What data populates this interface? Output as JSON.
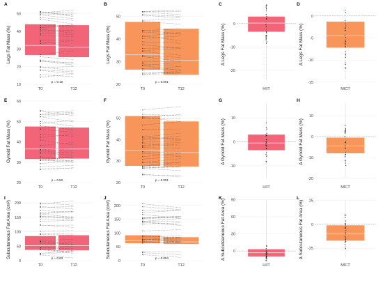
{
  "chart_data": [
    {
      "id": "A",
      "type": "bar",
      "panel_letter": "A",
      "kind": "paired",
      "color": "#f26478",
      "ylabel": "Legs Fat Mass (%)",
      "categories": [
        "T0",
        "T12"
      ],
      "values": [
        44,
        43.5
      ],
      "median": [
        32,
        31
      ],
      "ylim": [
        10,
        55
      ],
      "yticks": [
        10,
        20,
        30,
        40,
        50
      ],
      "p_text": "p = 0.15"
    },
    {
      "id": "B",
      "type": "bar",
      "panel_letter": "B",
      "kind": "paired",
      "color": "#f7955a",
      "ylabel": "Legs Fat Mass (%)",
      "categories": [
        "T0",
        "T12"
      ],
      "values": [
        47.5,
        44.5
      ],
      "median": [
        33,
        30.5
      ],
      "ylim": [
        20,
        55
      ],
      "yticks": [
        20,
        30,
        40,
        50
      ],
      "p_text": "p = 0.001"
    },
    {
      "id": "C",
      "type": "bar",
      "panel_letter": "C",
      "kind": "delta",
      "color": "#f26478",
      "ylabel": "Δ Legs Fat Mass (%)",
      "category": "HIIT",
      "range": [
        -3.5,
        3
      ],
      "median": 0.2,
      "ylim": [
        -26,
        8
      ],
      "yticks": [
        -20,
        -10,
        0
      ]
    },
    {
      "id": "D",
      "type": "bar",
      "panel_letter": "D",
      "kind": "delta",
      "color": "#f7955a",
      "ylabel": "Δ Legs Fat Mass (%)",
      "category": "MICT",
      "range": [
        -7.2,
        -1.3
      ],
      "median": -4.5,
      "ylim": [
        -15.5,
        2.5
      ],
      "yticks": [
        -15,
        -10,
        -5,
        0
      ]
    },
    {
      "id": "E",
      "type": "bar",
      "panel_letter": "E",
      "kind": "paired",
      "color": "#f26478",
      "ylabel": "Gynoid Fat Mass (%)",
      "categories": [
        "T0",
        "T12"
      ],
      "values": [
        47.5,
        47
      ],
      "median": [
        36.5,
        36.5
      ],
      "ylim": [
        20,
        60
      ],
      "yticks": [
        20,
        30,
        40,
        50,
        60
      ],
      "p_text": "p = 0.50"
    },
    {
      "id": "F",
      "type": "bar",
      "panel_letter": "F",
      "kind": "paired",
      "color": "#f7955a",
      "ylabel": "Gynoid Fat Mass (%)",
      "categories": [
        "T0",
        "T12"
      ],
      "values": [
        51,
        48.5
      ],
      "median": [
        35,
        34
      ],
      "ylim": [
        20,
        58
      ],
      "yticks": [
        20,
        30,
        40,
        50
      ],
      "p_text": "p = 0.001"
    },
    {
      "id": "G",
      "type": "bar",
      "panel_letter": "G",
      "kind": "delta",
      "color": "#f26478",
      "ylabel": "Δ Gynoid Fat Mass (%)",
      "category": "HIIT",
      "range": [
        -3.5,
        3
      ],
      "median": -0.5,
      "ylim": [
        -17,
        17
      ],
      "yticks": [
        -10,
        0,
        10
      ]
    },
    {
      "id": "H",
      "type": "bar",
      "panel_letter": "H",
      "kind": "delta",
      "color": "#f7955a",
      "ylabel": "Δ Gynoid Fat Mass (%)",
      "category": "MICT",
      "range": [
        -8,
        -0.5
      ],
      "median": -4.5,
      "ylim": [
        -22,
        17
      ],
      "yticks": [
        -20,
        -10,
        0,
        10
      ]
    },
    {
      "id": "I",
      "type": "bar",
      "panel_letter": "I",
      "kind": "paired",
      "color": "#f26478",
      "ylabel": "Subcutaneous Fat Area (cm²)",
      "categories": [
        "T0",
        "T12"
      ],
      "values": [
        85,
        88
      ],
      "median": [
        52,
        52
      ],
      "ylim": [
        0,
        215
      ],
      "yticks": [
        0,
        50,
        100,
        150,
        200
      ],
      "p_text": "p = 0.63"
    },
    {
      "id": "J",
      "type": "bar",
      "panel_letter": "J",
      "kind": "paired",
      "color": "#f7955a",
      "ylabel": "Subcutaneous Fat Area (cm²)",
      "categories": [
        "T0",
        "T12"
      ],
      "values": [
        92,
        85
      ],
      "median": [
        72,
        68
      ],
      "ylim": [
        0,
        225
      ],
      "yticks": [
        0,
        50,
        100,
        150,
        200
      ],
      "p_text": "p = 0.004"
    },
    {
      "id": "K",
      "type": "bar",
      "panel_letter": "K",
      "kind": "delta",
      "color": "#f26478",
      "ylabel": "Δ Subcuteaneous Fat Area (%)",
      "category": "HIIT",
      "range": [
        -10,
        3
      ],
      "median": -3,
      "ylim": [
        -17,
        92
      ],
      "yticks": [
        0,
        30,
        60,
        90
      ]
    },
    {
      "id": "L",
      "type": "bar",
      "panel_letter": "L",
      "kind": "delta",
      "color": "#f7955a",
      "ylabel": "Δ Subcutaneous Fat Area (%)",
      "category": "MICT",
      "range": [
        -17,
        -1
      ],
      "median": -10,
      "ylim": [
        -38,
        27
      ],
      "yticks": [
        -25,
        0,
        25
      ]
    }
  ]
}
